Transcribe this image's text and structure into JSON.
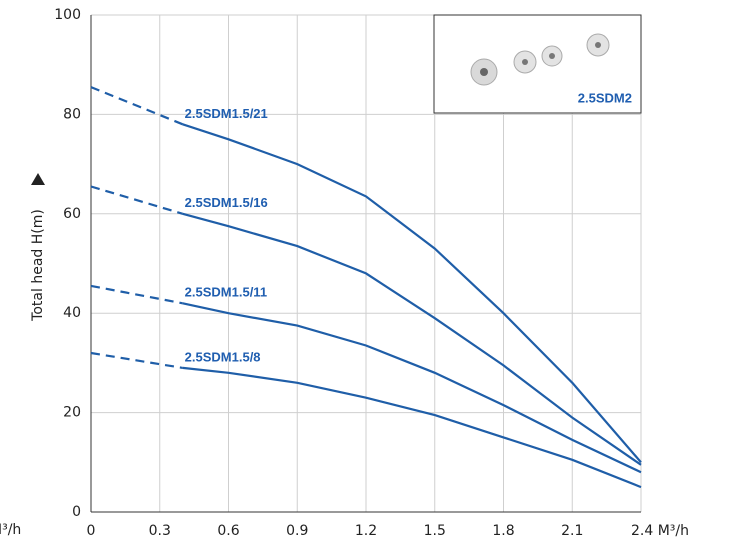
{
  "chart_data": {
    "type": "line",
    "y_label": "Total head H(m)",
    "x_unit": "M³/h",
    "inset_label": "2.5SDM2",
    "x": [
      0,
      0.4,
      0.6,
      0.9,
      1.2,
      1.5,
      1.8,
      2.1,
      2.4
    ],
    "series": [
      {
        "name": "2.5SDM1.5/21",
        "color": "#1f5ea8",
        "values": [
          85.5,
          78,
          75,
          70,
          63.5,
          53,
          40,
          26,
          10
        ]
      },
      {
        "name": "2.5SDM1.5/16",
        "color": "#1f5ea8",
        "values": [
          65.5,
          60,
          57.5,
          53.5,
          48,
          39,
          29.5,
          19,
          9.5
        ]
      },
      {
        "name": "2.5SDM1.5/11",
        "color": "#1f5ea8",
        "values": [
          45.5,
          42,
          40,
          37.5,
          33.5,
          28,
          21.5,
          14.5,
          8
        ]
      },
      {
        "name": "2.5SDM1.5/8",
        "color": "#1f5ea8",
        "values": [
          32,
          29,
          28,
          26,
          23,
          19.5,
          15,
          10.5,
          5
        ]
      }
    ],
    "xlim": [
      0,
      2.4
    ],
    "xticks": [
      0,
      0.3,
      0.6,
      0.9,
      1.2,
      1.5,
      1.8,
      2.1,
      {
        "value": 2.4,
        "label": "2.4 M³/h"
      }
    ],
    "ylim": [
      0,
      100
    ],
    "yticks": [
      0,
      20,
      40,
      60,
      80,
      100
    ],
    "grid": true
  }
}
